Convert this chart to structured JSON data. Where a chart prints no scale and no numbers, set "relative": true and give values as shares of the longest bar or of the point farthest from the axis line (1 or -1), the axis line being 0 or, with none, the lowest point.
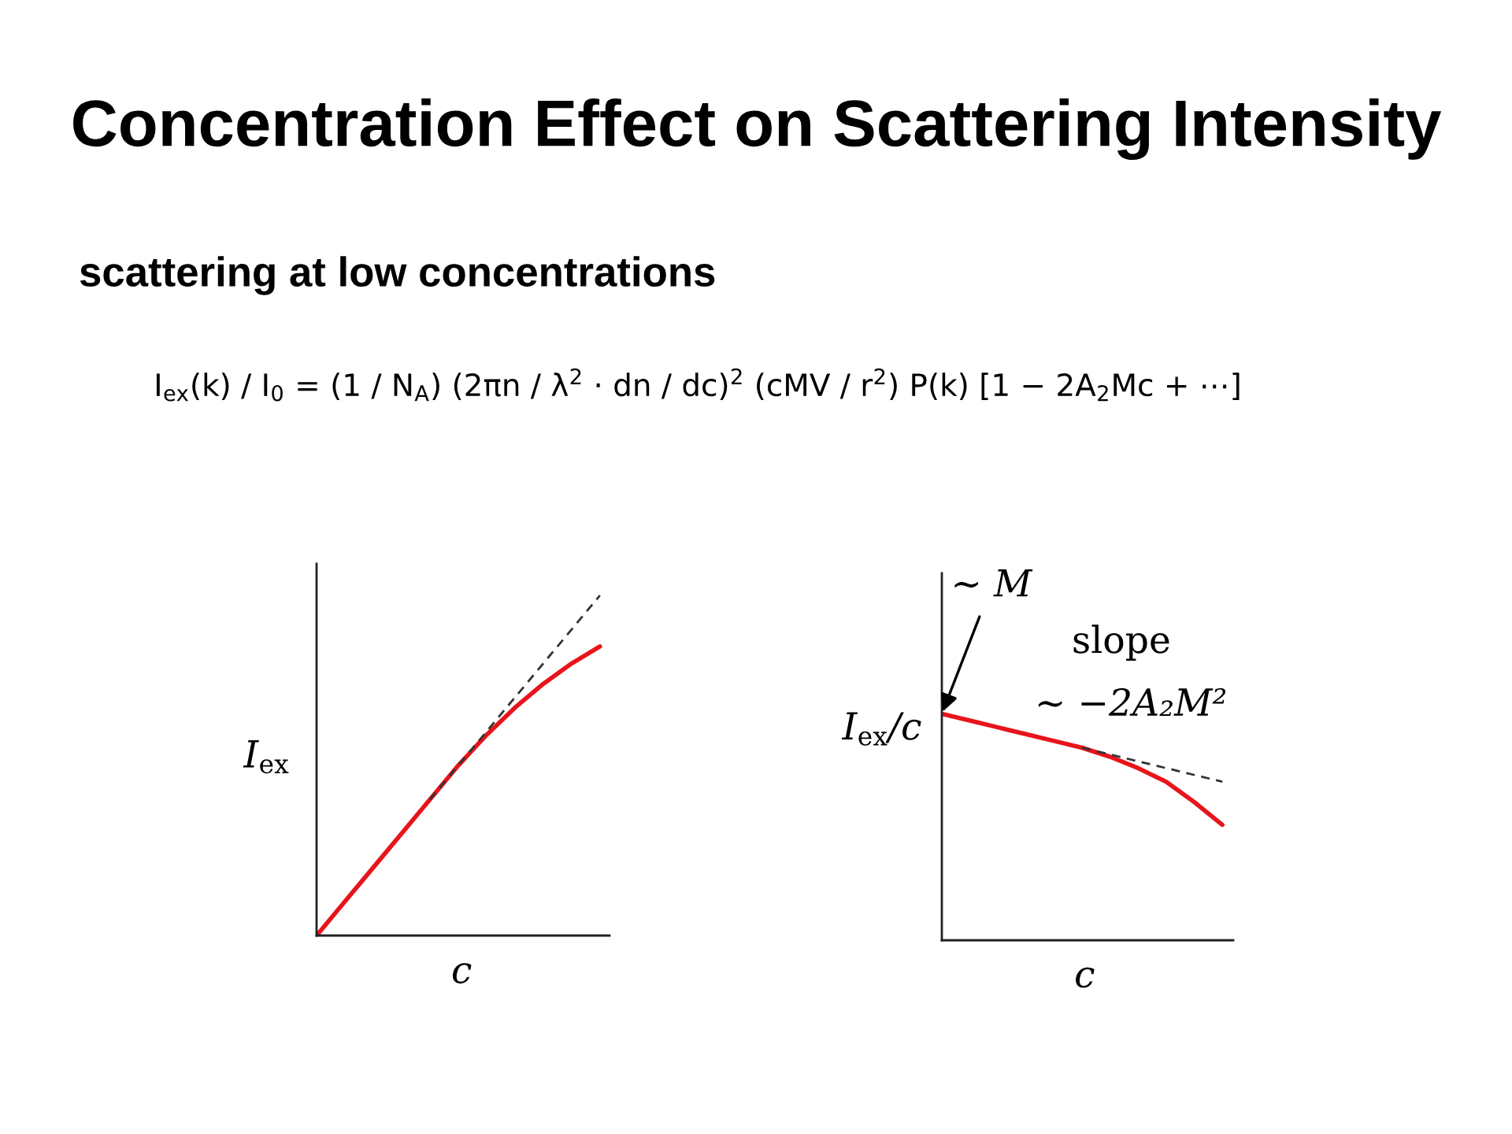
{
  "chart_data": [
    {
      "type": "line",
      "title": "Concentration Effect on Scattering Intensity",
      "subtitle": "scattering at low concentrations",
      "annotations": [
        "I$_{ex}$(k) / I$_{0}$ = (1 / N$_{A}$) (2πn / λ$^{2}$ · dn / dc)$^{2}$ (cMV / r$^{2}$) P(k) [1 − 2A$_{2}$Mc + ⋯]"
      ],
      "xlabel": "c",
      "ylabel": "I$_{ex}$",
      "relative": true,
      "categories": [
        null,
        null,
        null,
        null,
        null,
        null,
        null,
        null,
        null,
        null,
        null
      ],
      "series": [
        {
          "color": "#e8141b",
          "line_style": "solid",
          "values": [
            0,
            0.1,
            0.2,
            0.3,
            0.4,
            0.5,
            0.59,
            0.67,
            0.74,
            0.8,
            0.85
          ]
        },
        {
          "color": "#333333",
          "line_style": "dashed",
          "values": [
            null,
            null,
            null,
            null,
            0.4,
            0.5,
            0.6,
            0.7,
            0.8,
            0.9,
            1.0
          ]
        }
      ]
    },
    {
      "type": "line",
      "xlabel": "c",
      "ylabel": "I$_{ex}$/c",
      "relative": true,
      "annotations": [
        "∼ M",
        "slope",
        "∼ −2A₂M²"
      ],
      "categories": [
        null,
        null,
        null,
        null,
        null,
        null,
        null,
        null,
        null,
        null,
        null
      ],
      "series": [
        {
          "color": "#e8141b",
          "line_style": "solid",
          "values": [
            1.0,
            0.97,
            0.94,
            0.91,
            0.88,
            0.85,
            0.81,
            0.76,
            0.7,
            0.61,
            0.51
          ]
        },
        {
          "color": "#333333",
          "line_style": "dashed",
          "values": [
            null,
            null,
            null,
            null,
            null,
            0.85,
            0.82,
            0.79,
            0.76,
            0.73,
            0.7
          ]
        }
      ]
    }
  ]
}
